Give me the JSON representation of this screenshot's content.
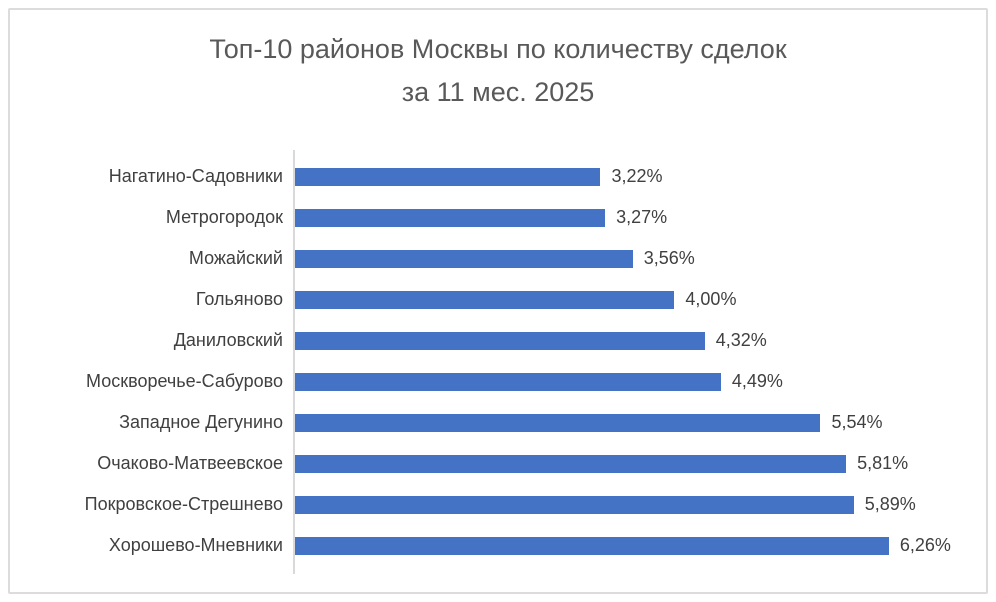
{
  "colors": {
    "bar": "#4472c4",
    "title_text": "#595959",
    "label_text": "#404040",
    "axis_line": "#d9d9d9",
    "chart_border": "#dcdcdc",
    "background": "#ffffff"
  },
  "chart_data": {
    "type": "bar",
    "orientation": "horizontal",
    "title": "Топ-10 районов Москвы по количеству сделок за 11 мес. 2025",
    "title_line1": "Топ-10 районов Москвы по количеству сделок",
    "title_line2": "за 11 мес. 2025",
    "xlabel": "",
    "ylabel": "",
    "xlim": [
      0,
      7
    ],
    "grid": false,
    "legend": false,
    "categories": [
      "Нагатино-Садовники",
      "Метрогородок",
      "Можайский",
      "Гольяново",
      "Даниловский",
      "Москворечье-Сабурово",
      "Западное Дегунино",
      "Очаково-Матвеевское",
      "Покровское-Стрешнево",
      "Хорошево-Мневники"
    ],
    "values": [
      3.22,
      3.27,
      3.56,
      4.0,
      4.32,
      4.49,
      5.54,
      5.81,
      5.89,
      6.26
    ],
    "value_labels": [
      "3,22%",
      "3,27%",
      "3,56%",
      "4,00%",
      "4,32%",
      "4,49%",
      "5,54%",
      "5,81%",
      "5,89%",
      "6,26%"
    ]
  }
}
